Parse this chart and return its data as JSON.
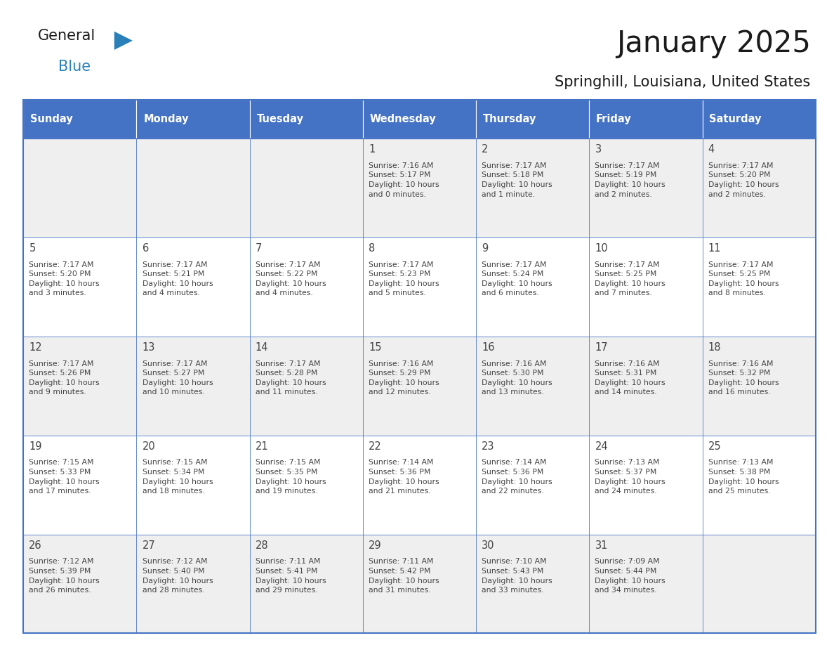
{
  "title": "January 2025",
  "subtitle": "Springhill, Louisiana, United States",
  "header_color": "#4472C4",
  "header_text_color": "#FFFFFF",
  "day_names": [
    "Sunday",
    "Monday",
    "Tuesday",
    "Wednesday",
    "Thursday",
    "Friday",
    "Saturday"
  ],
  "row_colors": [
    "#EFEFEF",
    "#FFFFFF",
    "#EFEFEF",
    "#FFFFFF",
    "#EFEFEF"
  ],
  "border_color": "#4472C4",
  "text_color": "#444444",
  "calendar": [
    [
      {
        "day": 0,
        "text": ""
      },
      {
        "day": 0,
        "text": ""
      },
      {
        "day": 0,
        "text": ""
      },
      {
        "day": 1,
        "text": "Sunrise: 7:16 AM\nSunset: 5:17 PM\nDaylight: 10 hours\nand 0 minutes."
      },
      {
        "day": 2,
        "text": "Sunrise: 7:17 AM\nSunset: 5:18 PM\nDaylight: 10 hours\nand 1 minute."
      },
      {
        "day": 3,
        "text": "Sunrise: 7:17 AM\nSunset: 5:19 PM\nDaylight: 10 hours\nand 2 minutes."
      },
      {
        "day": 4,
        "text": "Sunrise: 7:17 AM\nSunset: 5:20 PM\nDaylight: 10 hours\nand 2 minutes."
      }
    ],
    [
      {
        "day": 5,
        "text": "Sunrise: 7:17 AM\nSunset: 5:20 PM\nDaylight: 10 hours\nand 3 minutes."
      },
      {
        "day": 6,
        "text": "Sunrise: 7:17 AM\nSunset: 5:21 PM\nDaylight: 10 hours\nand 4 minutes."
      },
      {
        "day": 7,
        "text": "Sunrise: 7:17 AM\nSunset: 5:22 PM\nDaylight: 10 hours\nand 4 minutes."
      },
      {
        "day": 8,
        "text": "Sunrise: 7:17 AM\nSunset: 5:23 PM\nDaylight: 10 hours\nand 5 minutes."
      },
      {
        "day": 9,
        "text": "Sunrise: 7:17 AM\nSunset: 5:24 PM\nDaylight: 10 hours\nand 6 minutes."
      },
      {
        "day": 10,
        "text": "Sunrise: 7:17 AM\nSunset: 5:25 PM\nDaylight: 10 hours\nand 7 minutes."
      },
      {
        "day": 11,
        "text": "Sunrise: 7:17 AM\nSunset: 5:25 PM\nDaylight: 10 hours\nand 8 minutes."
      }
    ],
    [
      {
        "day": 12,
        "text": "Sunrise: 7:17 AM\nSunset: 5:26 PM\nDaylight: 10 hours\nand 9 minutes."
      },
      {
        "day": 13,
        "text": "Sunrise: 7:17 AM\nSunset: 5:27 PM\nDaylight: 10 hours\nand 10 minutes."
      },
      {
        "day": 14,
        "text": "Sunrise: 7:17 AM\nSunset: 5:28 PM\nDaylight: 10 hours\nand 11 minutes."
      },
      {
        "day": 15,
        "text": "Sunrise: 7:16 AM\nSunset: 5:29 PM\nDaylight: 10 hours\nand 12 minutes."
      },
      {
        "day": 16,
        "text": "Sunrise: 7:16 AM\nSunset: 5:30 PM\nDaylight: 10 hours\nand 13 minutes."
      },
      {
        "day": 17,
        "text": "Sunrise: 7:16 AM\nSunset: 5:31 PM\nDaylight: 10 hours\nand 14 minutes."
      },
      {
        "day": 18,
        "text": "Sunrise: 7:16 AM\nSunset: 5:32 PM\nDaylight: 10 hours\nand 16 minutes."
      }
    ],
    [
      {
        "day": 19,
        "text": "Sunrise: 7:15 AM\nSunset: 5:33 PM\nDaylight: 10 hours\nand 17 minutes."
      },
      {
        "day": 20,
        "text": "Sunrise: 7:15 AM\nSunset: 5:34 PM\nDaylight: 10 hours\nand 18 minutes."
      },
      {
        "day": 21,
        "text": "Sunrise: 7:15 AM\nSunset: 5:35 PM\nDaylight: 10 hours\nand 19 minutes."
      },
      {
        "day": 22,
        "text": "Sunrise: 7:14 AM\nSunset: 5:36 PM\nDaylight: 10 hours\nand 21 minutes."
      },
      {
        "day": 23,
        "text": "Sunrise: 7:14 AM\nSunset: 5:36 PM\nDaylight: 10 hours\nand 22 minutes."
      },
      {
        "day": 24,
        "text": "Sunrise: 7:13 AM\nSunset: 5:37 PM\nDaylight: 10 hours\nand 24 minutes."
      },
      {
        "day": 25,
        "text": "Sunrise: 7:13 AM\nSunset: 5:38 PM\nDaylight: 10 hours\nand 25 minutes."
      }
    ],
    [
      {
        "day": 26,
        "text": "Sunrise: 7:12 AM\nSunset: 5:39 PM\nDaylight: 10 hours\nand 26 minutes."
      },
      {
        "day": 27,
        "text": "Sunrise: 7:12 AM\nSunset: 5:40 PM\nDaylight: 10 hours\nand 28 minutes."
      },
      {
        "day": 28,
        "text": "Sunrise: 7:11 AM\nSunset: 5:41 PM\nDaylight: 10 hours\nand 29 minutes."
      },
      {
        "day": 29,
        "text": "Sunrise: 7:11 AM\nSunset: 5:42 PM\nDaylight: 10 hours\nand 31 minutes."
      },
      {
        "day": 30,
        "text": "Sunrise: 7:10 AM\nSunset: 5:43 PM\nDaylight: 10 hours\nand 33 minutes."
      },
      {
        "day": 31,
        "text": "Sunrise: 7:09 AM\nSunset: 5:44 PM\nDaylight: 10 hours\nand 34 minutes."
      },
      {
        "day": 0,
        "text": ""
      }
    ]
  ],
  "logo_general_color": "#1a1a1a",
  "logo_blue_color": "#2980B9",
  "logo_triangle_color": "#2980B9",
  "fig_width": 11.88,
  "fig_height": 9.18,
  "dpi": 100
}
